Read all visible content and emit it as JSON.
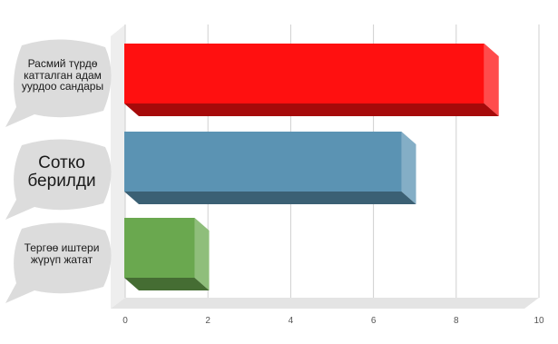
{
  "chart_data": {
    "type": "bar",
    "orientation": "horizontal",
    "style": "3d",
    "categories": [
      "Расмий түрдө катталган адам уурдоо сандары",
      "Сотко берилди",
      "Тергөө иштери жүрүп жатат"
    ],
    "values": [
      8.7,
      6.7,
      1.7
    ],
    "colors": [
      "#ff1010",
      "#5b93b3",
      "#6aa84f"
    ],
    "xlim": [
      0,
      10
    ],
    "xticks": [
      "0",
      "2",
      "4",
      "6",
      "8",
      "10"
    ],
    "grid": true,
    "legend": "none"
  }
}
